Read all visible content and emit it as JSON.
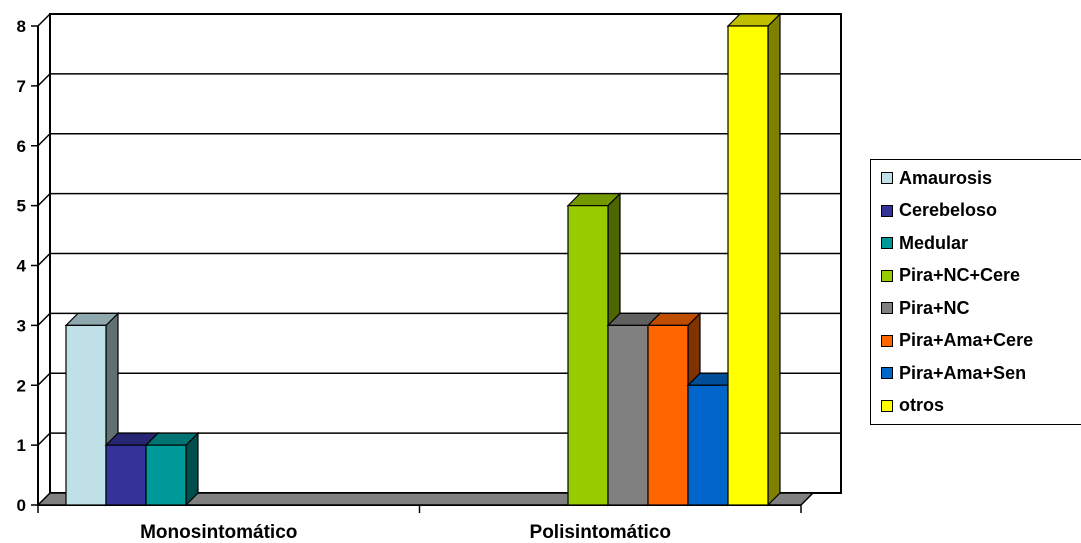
{
  "chart_data": {
    "type": "bar",
    "categories": [
      "Monosintomático",
      "Polisintomático"
    ],
    "series": [
      {
        "name": "Amaurosis",
        "values": [
          3,
          0
        ],
        "color": "#bfe0e6"
      },
      {
        "name": "Cerebeloso",
        "values": [
          1,
          0
        ],
        "color": "#333399"
      },
      {
        "name": "Medular",
        "values": [
          1,
          0
        ],
        "color": "#009999"
      },
      {
        "name": "Pira+NC+Cere",
        "values": [
          0,
          5
        ],
        "color": "#99cc00"
      },
      {
        "name": "Pira+NC",
        "values": [
          0,
          3
        ],
        "color": "#808080"
      },
      {
        "name": "Pira+Ama+Cere",
        "values": [
          0,
          3
        ],
        "color": "#ff6600"
      },
      {
        "name": "Pira+Ama+Sen",
        "values": [
          0,
          2
        ],
        "color": "#0066cc"
      },
      {
        "name": "otros",
        "values": [
          0,
          8
        ],
        "color": "#ffff00"
      }
    ],
    "ylim": [
      0,
      8
    ],
    "yticks": [
      "0",
      "1",
      "2",
      "3",
      "4",
      "5",
      "6",
      "7",
      "8"
    ],
    "grid": true,
    "legend_position": "right",
    "style": "3d-clustered"
  }
}
